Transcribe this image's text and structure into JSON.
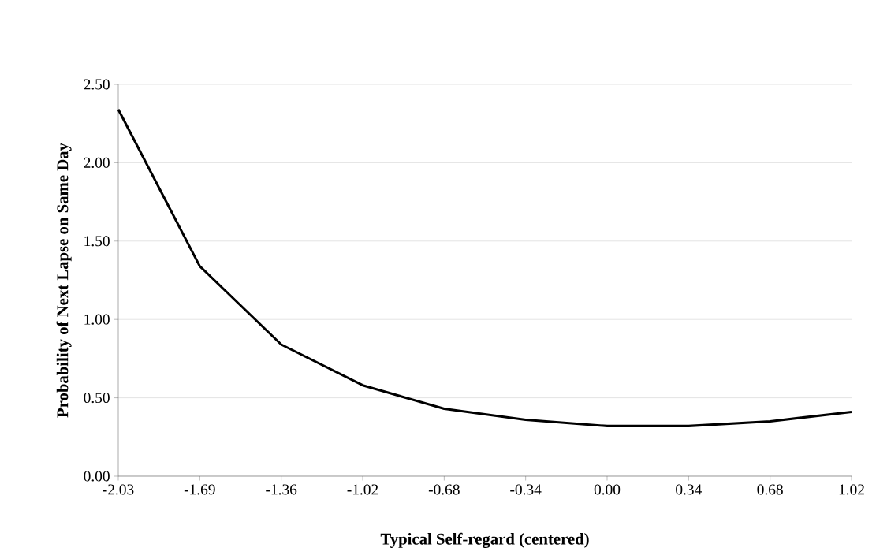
{
  "chart_data": {
    "type": "line",
    "xlabel": "Typical Self-regard (centered)",
    "ylabel": "Probability of Next Lapse on Same Day",
    "categories": [
      "-2.03",
      "-1.69",
      "-1.36",
      "-1.02",
      "-0.68",
      "-0.34",
      "0.00",
      "0.34",
      "0.68",
      "1.02"
    ],
    "series": [
      {
        "color": "#000000",
        "values": [
          2.34,
          1.34,
          0.84,
          0.58,
          0.43,
          0.36,
          0.32,
          0.32,
          0.35,
          0.41
        ]
      }
    ],
    "ylim": [
      0,
      2.5
    ],
    "yticks": [
      {
        "value": 0,
        "label": "0.00"
      },
      {
        "value": 0.5,
        "label": "0.50"
      },
      {
        "value": 1,
        "label": "1.00"
      },
      {
        "value": 1.5,
        "label": "1.50"
      },
      {
        "value": 2,
        "label": "2.00"
      },
      {
        "value": 2.5,
        "label": "2.50"
      }
    ],
    "grid": "y",
    "marker": "none",
    "line_style": "solid"
  }
}
